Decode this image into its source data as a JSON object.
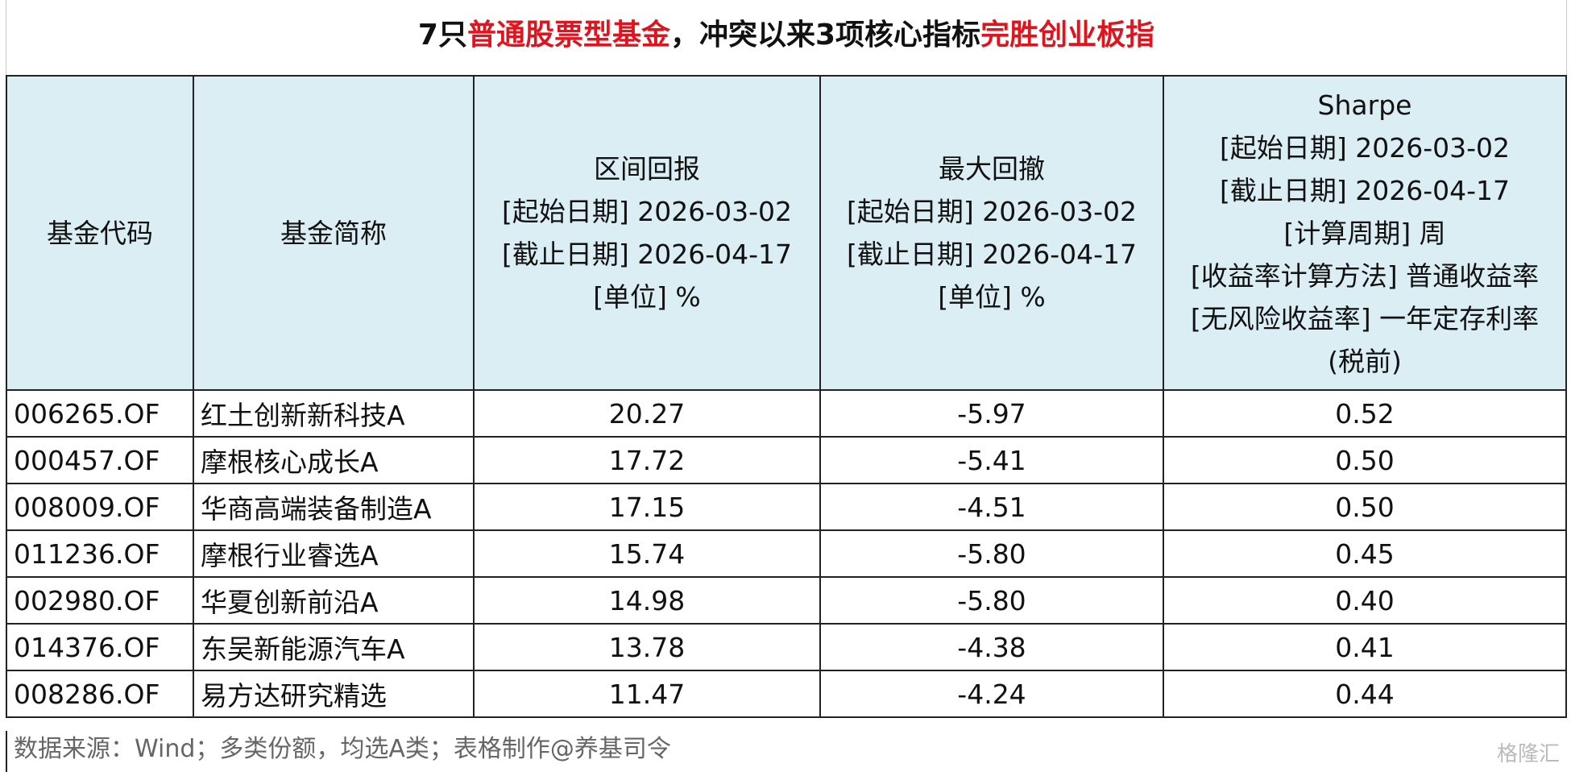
{
  "title": [
    "7只",
    "普通股票型基金",
    "，冲突以来3项核心指标",
    "完胜创业板指"
  ],
  "table": {
    "header": [
      [
        "基金代码"
      ],
      [
        "基金简称"
      ],
      [
        "区间回报",
        "[起始日期] 2026-03-02",
        "[截止日期] 2026-04-17",
        "[单位] %"
      ],
      [
        "最大回撤",
        "[起始日期] 2026-03-02",
        "[截止日期] 2026-04-17",
        "[单位] %"
      ],
      [
        "Sharpe",
        "[起始日期] 2026-03-02",
        "[截止日期] 2026-04-17",
        "[计算周期] 周",
        "[收益率计算方法] 普通收益率",
        "[无风险收益率] 一年定存利率",
        "(税前)"
      ]
    ],
    "rows": [
      [
        "006265.OF",
        "红土创新新科技A",
        "20.27",
        "-5.97",
        "0.52"
      ],
      [
        "000457.OF",
        "摩根核心成长A",
        "17.72",
        "-5.41",
        "0.50"
      ],
      [
        "008009.OF",
        "华商高端装备制造A",
        "17.15",
        "-4.51",
        "0.50"
      ],
      [
        "011236.OF",
        "摩根行业睿选A",
        "15.74",
        "-5.80",
        "0.45"
      ],
      [
        "002980.OF",
        "华夏创新前沿A",
        "14.98",
        "-5.80",
        "0.40"
      ],
      [
        "014376.OF",
        "东吴新能源汽车A",
        "13.78",
        "-4.38",
        "0.41"
      ],
      [
        "008286.OF",
        "易方达研究精选",
        "11.47",
        "-4.24",
        "0.44"
      ]
    ]
  },
  "footer": "数据来源：Wind；多类份额，均选A类；表格制作@养基司令",
  "watermark": "格隆汇"
}
